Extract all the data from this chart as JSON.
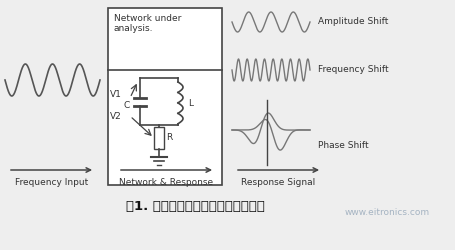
{
  "bg_color": "#eeeeee",
  "title_text": "图1. 具有复数阻抗特性的传感器模型",
  "title_color": "#111111",
  "watermark": "www.eitronics.com",
  "watermark_color": "#99aabb",
  "labels": {
    "amplitude_shift": "Amplitude Shift",
    "frequency_shift": "Frequency Shift",
    "phase_shift": "Phase Shift",
    "freq_input": "Frequency Input",
    "network_response": "Network & Response",
    "response_signal": "Response Signal",
    "network_under": "Network under\nanalysis.",
    "v1": "V1",
    "v2": "V2",
    "c": "C",
    "l": "L",
    "r": "R"
  },
  "line_color": "#555555",
  "circuit_color": "#444444",
  "text_color": "#333333"
}
